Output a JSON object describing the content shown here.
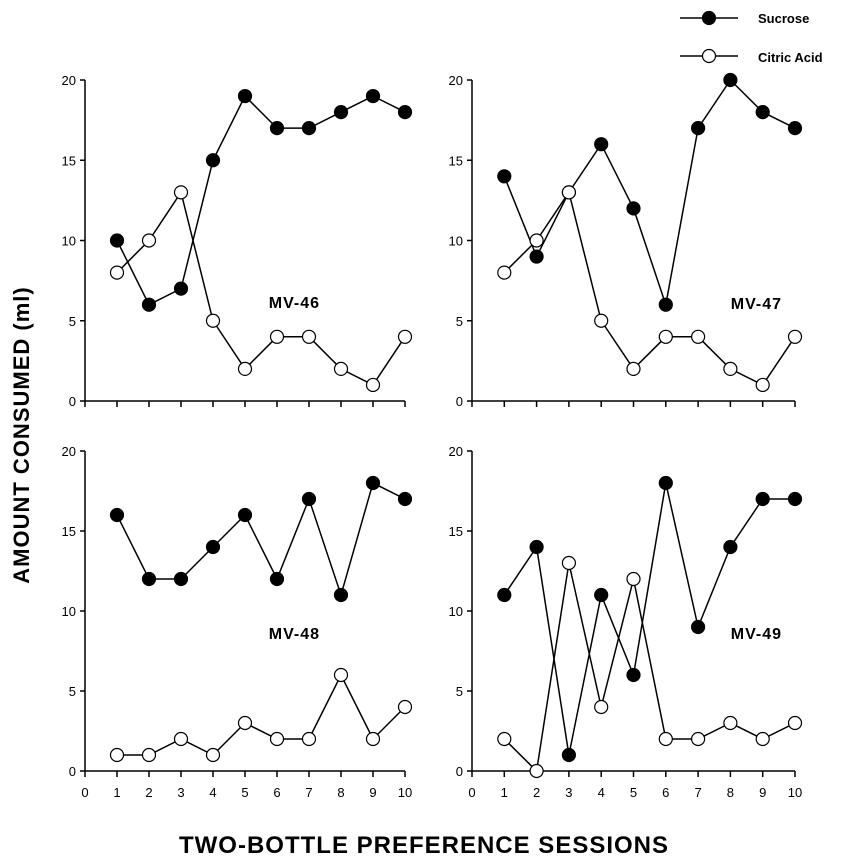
{
  "legend": {
    "sucrose": "Sucrose",
    "citric": "Citric Acid"
  },
  "ylabel": "AMOUNT CONSUMED (ml)",
  "xlabel": "TWO-BOTTLE PREFERENCE SESSIONS",
  "chart_data": [
    {
      "type": "line",
      "panel": "MV-46",
      "x": [
        1,
        2,
        3,
        4,
        5,
        6,
        7,
        8,
        9,
        10
      ],
      "xlim": [
        0,
        10
      ],
      "ylim": [
        0,
        20
      ],
      "xticks": [
        0,
        1,
        2,
        3,
        4,
        5,
        6,
        7,
        8,
        9,
        10
      ],
      "yticks": [
        0,
        5,
        10,
        15,
        20
      ],
      "show_x_tick_labels": false,
      "series": [
        {
          "name": "Sucrose",
          "marker": "filled",
          "values": [
            10,
            6,
            7,
            15,
            19,
            17,
            17,
            18,
            19,
            18
          ]
        },
        {
          "name": "Citric Acid",
          "marker": "open",
          "values": [
            8,
            10,
            13,
            5,
            2,
            4,
            4,
            2,
            1,
            4
          ]
        }
      ]
    },
    {
      "type": "line",
      "panel": "MV-47",
      "x": [
        1,
        2,
        3,
        4,
        5,
        6,
        7,
        8,
        9,
        10
      ],
      "xlim": [
        0,
        10
      ],
      "ylim": [
        0,
        20
      ],
      "xticks": [
        0,
        1,
        2,
        3,
        4,
        5,
        6,
        7,
        8,
        9,
        10
      ],
      "yticks": [
        0,
        5,
        10,
        15,
        20
      ],
      "show_x_tick_labels": false,
      "series": [
        {
          "name": "Sucrose",
          "marker": "filled",
          "values": [
            14,
            9,
            13,
            16,
            12,
            6,
            17,
            20,
            18,
            17
          ]
        },
        {
          "name": "Citric Acid",
          "marker": "open",
          "values": [
            8,
            10,
            13,
            5,
            2,
            4,
            4,
            2,
            1,
            4
          ]
        }
      ]
    },
    {
      "type": "line",
      "panel": "MV-48",
      "x": [
        1,
        2,
        3,
        4,
        5,
        6,
        7,
        8,
        9,
        10
      ],
      "xlim": [
        0,
        10
      ],
      "ylim": [
        0,
        20
      ],
      "xticks": [
        0,
        1,
        2,
        3,
        4,
        5,
        6,
        7,
        8,
        9,
        10
      ],
      "yticks": [
        0,
        5,
        10,
        15,
        20
      ],
      "show_x_tick_labels": true,
      "series": [
        {
          "name": "Sucrose",
          "marker": "filled",
          "values": [
            16,
            12,
            12,
            14,
            16,
            12,
            17,
            11,
            18,
            17
          ]
        },
        {
          "name": "Citric Acid",
          "marker": "open",
          "values": [
            1,
            1,
            2,
            1,
            3,
            2,
            2,
            6,
            2,
            4
          ]
        }
      ]
    },
    {
      "type": "line",
      "panel": "MV-49",
      "x": [
        1,
        2,
        3,
        4,
        5,
        6,
        7,
        8,
        9,
        10
      ],
      "xlim": [
        0,
        10
      ],
      "ylim": [
        0,
        20
      ],
      "xticks": [
        0,
        1,
        2,
        3,
        4,
        5,
        6,
        7,
        8,
        9,
        10
      ],
      "yticks": [
        0,
        5,
        10,
        15,
        20
      ],
      "show_x_tick_labels": true,
      "series": [
        {
          "name": "Sucrose",
          "marker": "filled",
          "values": [
            11,
            14,
            1,
            11,
            6,
            18,
            9,
            14,
            17,
            17
          ]
        },
        {
          "name": "Citric Acid",
          "marker": "open",
          "values": [
            2,
            0,
            13,
            4,
            12,
            2,
            2,
            3,
            2,
            3
          ]
        }
      ]
    }
  ]
}
